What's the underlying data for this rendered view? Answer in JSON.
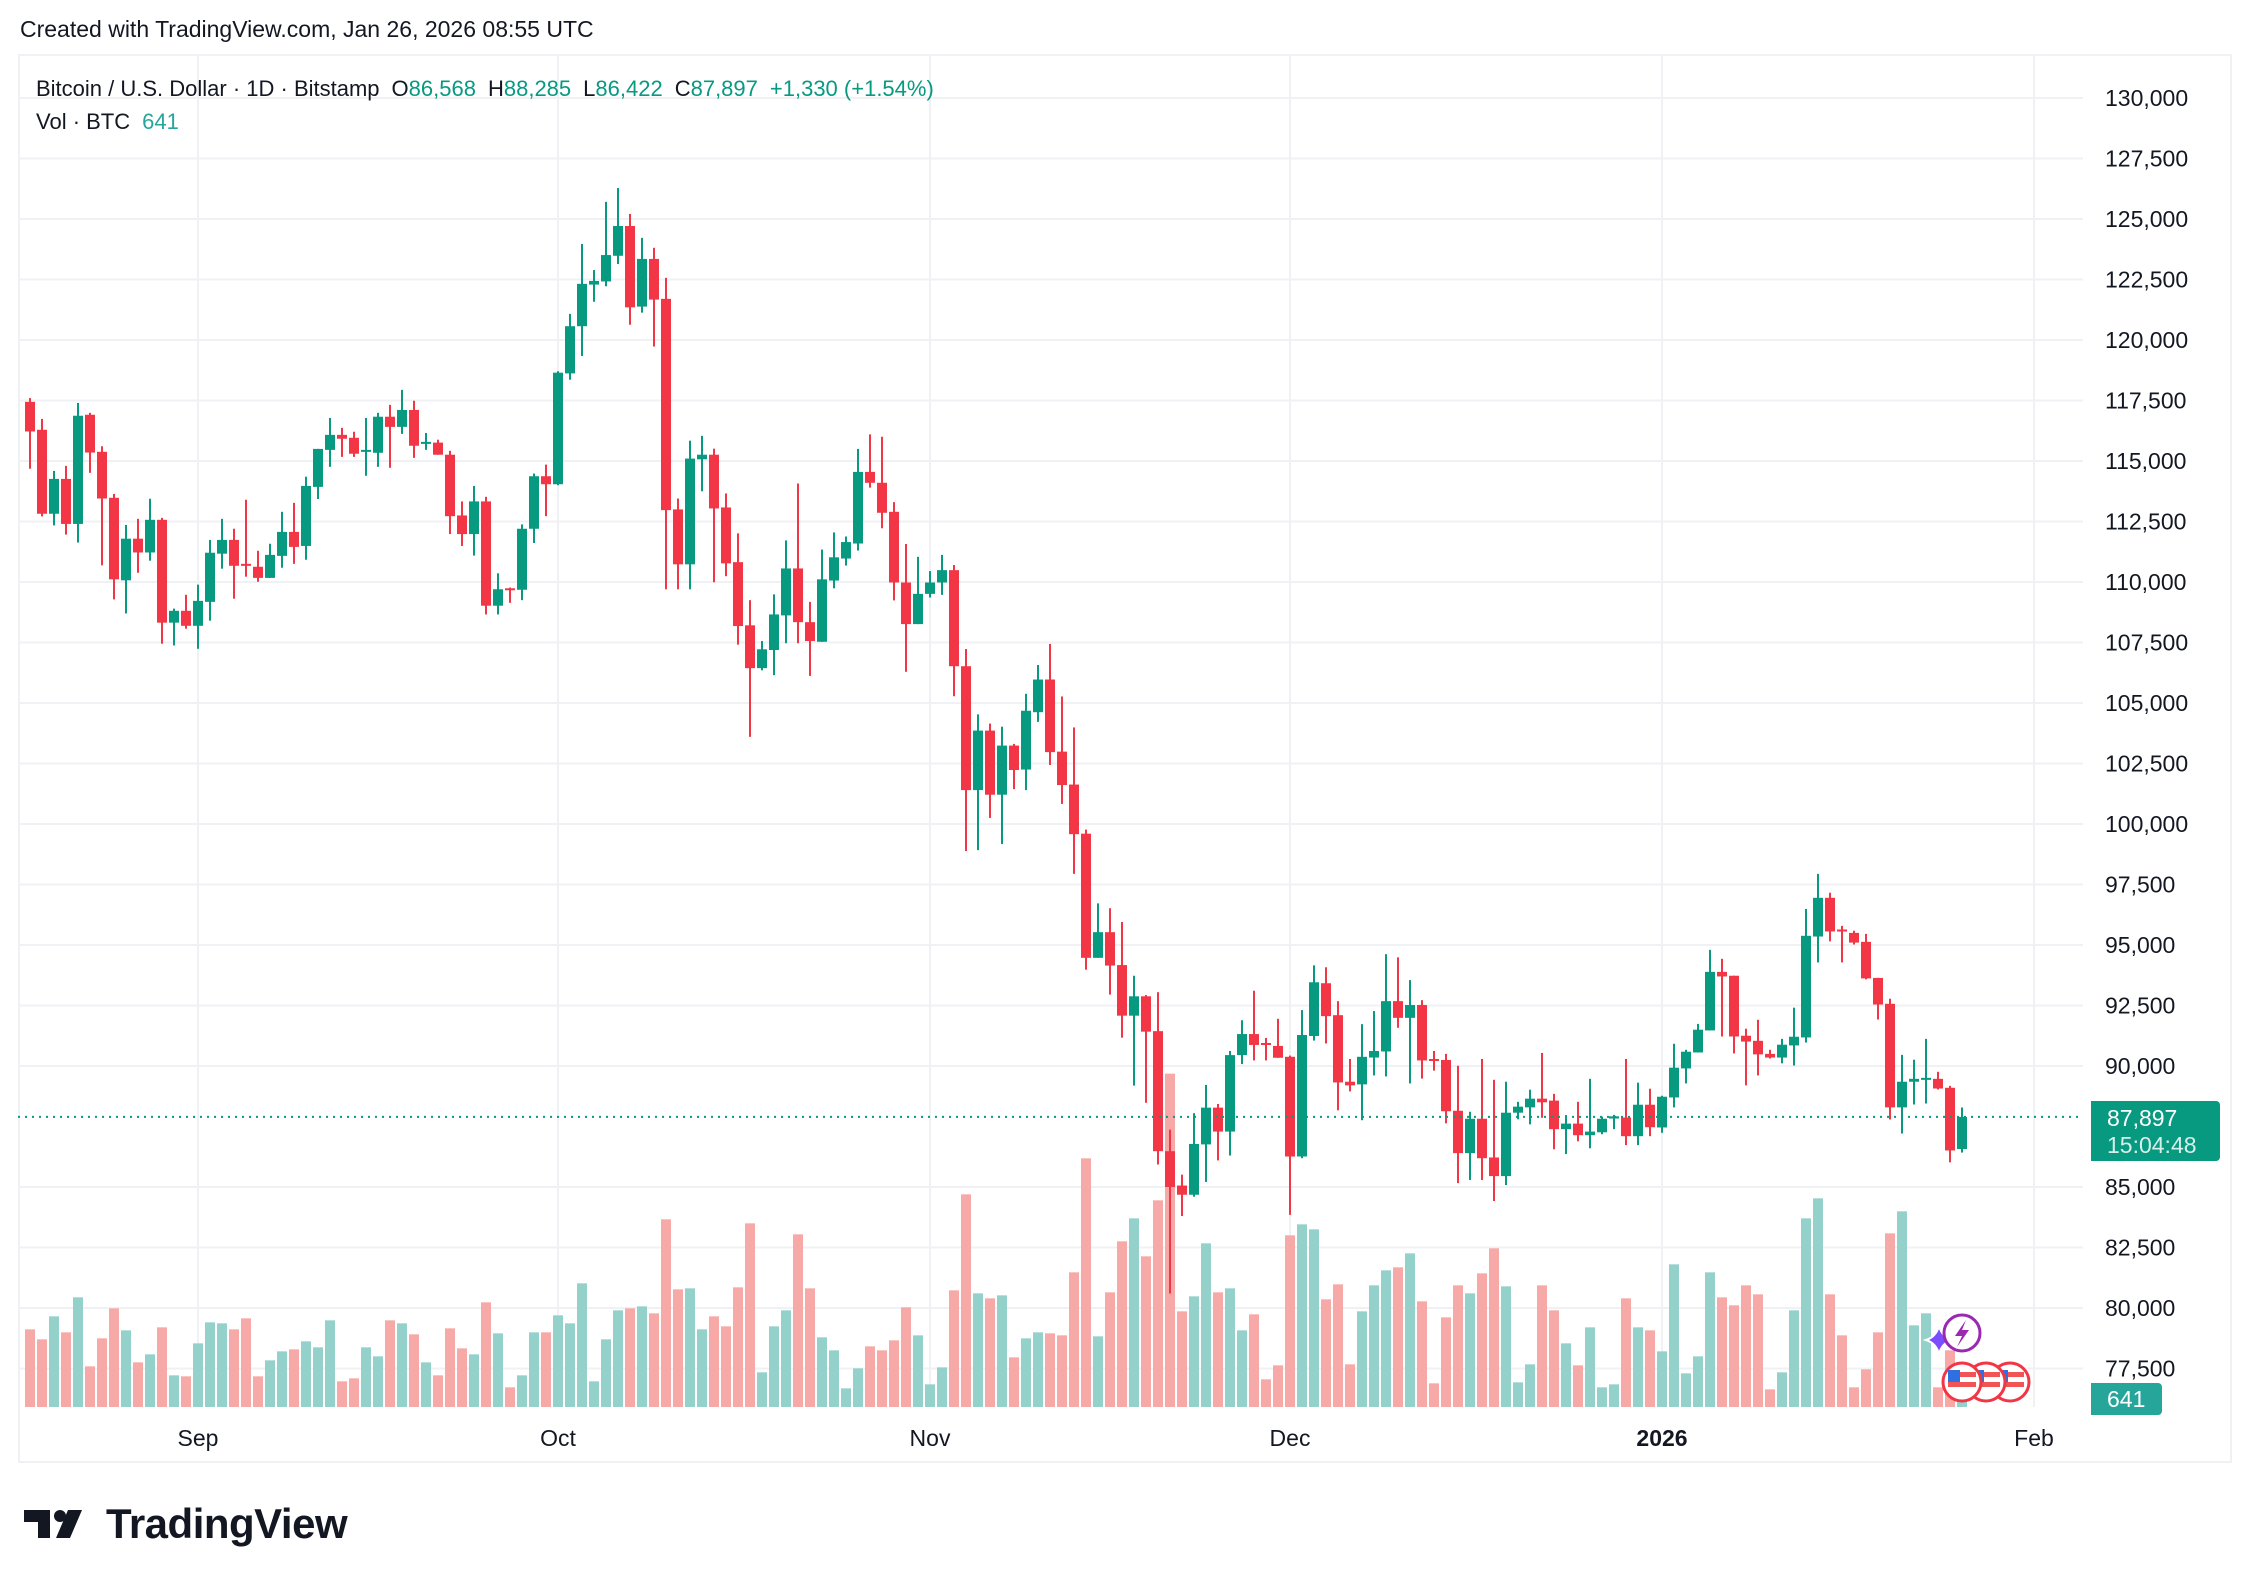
{
  "header": {
    "created": "Created with TradingView.com, Jan 26, 2026 08:55 UTC"
  },
  "legend": {
    "symbol": "Bitcoin / U.S. Dollar · 1D · Bitstamp",
    "o_label": "O",
    "o_value": "86,568",
    "h_label": "H",
    "h_value": "88,285",
    "l_label": "L",
    "l_value": "86,422",
    "c_label": "C",
    "c_value": "87,897",
    "change": "+1,330 (+1.54%)",
    "vol_label": "Vol · BTC",
    "vol_value": "641"
  },
  "badges": {
    "price": "87,897",
    "countdown": "15:04:48",
    "volume": "641"
  },
  "brand": {
    "name": "TradingView"
  },
  "colors": {
    "up": "#089981",
    "down": "#f23645",
    "vol_up": "#94d1cb",
    "vol_down": "#f7a9a7",
    "grid": "#f0f1f4"
  },
  "chart_data": {
    "type": "candlestick",
    "title": "Bitcoin / U.S. Dollar · 1D · Bitstamp",
    "start_date": "2025-08-18",
    "interval": "1D",
    "ylim": [
      76500,
      131000
    ],
    "grid": true,
    "y_ticks": [
      "130,000",
      "127,500",
      "125,000",
      "122,500",
      "120,000",
      "117,500",
      "115,000",
      "112,500",
      "110,000",
      "107,500",
      "105,000",
      "102,500",
      "100,000",
      "97,500",
      "95,000",
      "92,500",
      "90,000",
      "85,000",
      "82,500",
      "80,000",
      "77,500"
    ],
    "y_tick_values": [
      130000,
      127500,
      125000,
      122500,
      120000,
      117500,
      115000,
      112500,
      110000,
      107500,
      105000,
      102500,
      100000,
      97500,
      95000,
      92500,
      90000,
      85000,
      82500,
      80000,
      77500
    ],
    "x_ticks": [
      {
        "label": "Sep",
        "date": "2025-09-01",
        "bold": false
      },
      {
        "label": "Oct",
        "date": "2025-10-01",
        "bold": false
      },
      {
        "label": "Nov",
        "date": "2025-11-01",
        "bold": false
      },
      {
        "label": "Dec",
        "date": "2025-12-01",
        "bold": false
      },
      {
        "label": "2026",
        "date": "2026-01-01",
        "bold": true
      },
      {
        "label": "Feb",
        "date": "2026-02-01",
        "bold": false
      }
    ],
    "last_price": 87897,
    "ohlc": [
      [
        117445,
        117600,
        114680,
        116220
      ],
      [
        116290,
        116740,
        112710,
        112820
      ],
      [
        112820,
        114590,
        112340,
        114260
      ],
      [
        114260,
        114800,
        111960,
        112400
      ],
      [
        112400,
        117400,
        111630,
        116870
      ],
      [
        116910,
        116990,
        114510,
        115350
      ],
      [
        115380,
        115610,
        110690,
        113450
      ],
      [
        113480,
        113640,
        109280,
        110110
      ],
      [
        110070,
        112360,
        108700,
        111790
      ],
      [
        111790,
        112610,
        110380,
        111220
      ],
      [
        111220,
        113440,
        110880,
        112570
      ],
      [
        112570,
        112650,
        107450,
        108320
      ],
      [
        108320,
        108900,
        107380,
        108810
      ],
      [
        108810,
        109470,
        108070,
        108190
      ],
      [
        108190,
        109890,
        107240,
        109220
      ],
      [
        109180,
        111740,
        108400,
        111210
      ],
      [
        111170,
        112610,
        110550,
        111740
      ],
      [
        111740,
        112200,
        109310,
        110670
      ],
      [
        110750,
        113400,
        110220,
        110670
      ],
      [
        110630,
        111290,
        110010,
        110170
      ],
      [
        110170,
        111580,
        110170,
        111120
      ],
      [
        111080,
        112900,
        110590,
        112070
      ],
      [
        112070,
        113270,
        110750,
        111450
      ],
      [
        111490,
        114350,
        110920,
        113970
      ],
      [
        113930,
        115500,
        113430,
        115500
      ],
      [
        115460,
        116780,
        114760,
        116080
      ],
      [
        116080,
        116370,
        115170,
        115920
      ],
      [
        115960,
        116210,
        115170,
        115300
      ],
      [
        115420,
        116780,
        114390,
        115460
      ],
      [
        115340,
        116990,
        114760,
        116830
      ],
      [
        116830,
        117320,
        114720,
        116410
      ],
      [
        116410,
        117940,
        116120,
        117110
      ],
      [
        117110,
        117490,
        115130,
        115630
      ],
      [
        115750,
        116160,
        115460,
        115790
      ],
      [
        115760,
        115880,
        115260,
        115260
      ],
      [
        115260,
        115420,
        111980,
        112720
      ],
      [
        112750,
        113330,
        111490,
        111980
      ],
      [
        111980,
        113970,
        111090,
        113330
      ],
      [
        113330,
        113520,
        108660,
        109020
      ],
      [
        109020,
        110360,
        108660,
        109700
      ],
      [
        109740,
        109770,
        109140,
        109680
      ],
      [
        109680,
        112380,
        109250,
        112200
      ],
      [
        112200,
        114480,
        111610,
        114370
      ],
      [
        114370,
        114850,
        112720,
        114040
      ],
      [
        114040,
        118710,
        114000,
        118650
      ],
      [
        118620,
        121080,
        118360,
        120570
      ],
      [
        120570,
        123970,
        119340,
        122320
      ],
      [
        122290,
        122890,
        121580,
        122440
      ],
      [
        122420,
        125710,
        122220,
        123510
      ],
      [
        123480,
        126280,
        123140,
        124710
      ],
      [
        124710,
        125210,
        120630,
        121350
      ],
      [
        121380,
        124220,
        121130,
        123350
      ],
      [
        123350,
        123810,
        119730,
        121670
      ],
      [
        121700,
        122570,
        109700,
        112970
      ],
      [
        113000,
        113450,
        109700,
        110730
      ],
      [
        110730,
        115840,
        109700,
        115100
      ],
      [
        115070,
        116040,
        113750,
        115260
      ],
      [
        115260,
        115510,
        109990,
        113040
      ],
      [
        113080,
        113660,
        110240,
        110770
      ],
      [
        110820,
        112010,
        107410,
        108180
      ],
      [
        108210,
        109250,
        103600,
        106440
      ],
      [
        106440,
        107560,
        106350,
        107220
      ],
      [
        107190,
        109490,
        106150,
        108660
      ],
      [
        108620,
        111720,
        107470,
        110560
      ],
      [
        110560,
        114070,
        107470,
        108340
      ],
      [
        108340,
        109180,
        106120,
        107560
      ],
      [
        107530,
        111340,
        107530,
        110110
      ],
      [
        110060,
        112050,
        109740,
        111020
      ],
      [
        110970,
        111880,
        110680,
        111650
      ],
      [
        111590,
        115500,
        111300,
        114550
      ],
      [
        114550,
        116100,
        113900,
        114100
      ],
      [
        114100,
        116000,
        112220,
        112860
      ],
      [
        112900,
        113300,
        109240,
        109980
      ],
      [
        109980,
        111570,
        106290,
        108260
      ],
      [
        108260,
        111040,
        108260,
        109510
      ],
      [
        109510,
        110450,
        109360,
        109980
      ],
      [
        109980,
        111120,
        109470,
        110490
      ],
      [
        110490,
        110700,
        105280,
        106520
      ],
      [
        106520,
        107230,
        98880,
        101400
      ],
      [
        101400,
        104530,
        98920,
        103860
      ],
      [
        103860,
        104150,
        100250,
        101210
      ],
      [
        101210,
        104020,
        99170,
        103240
      ],
      [
        103240,
        103310,
        101440,
        102230
      ],
      [
        102250,
        105380,
        101400,
        104680
      ],
      [
        104620,
        106570,
        104220,
        105970
      ],
      [
        105970,
        107440,
        102440,
        102970
      ],
      [
        102990,
        105270,
        100830,
        101610
      ],
      [
        101630,
        103990,
        97940,
        99580
      ],
      [
        99600,
        99770,
        93980,
        94470
      ],
      [
        94470,
        96720,
        94470,
        95530
      ],
      [
        95530,
        96520,
        92950,
        94150
      ],
      [
        94170,
        95950,
        91170,
        92080
      ],
      [
        92080,
        93730,
        89190,
        92880
      ],
      [
        92880,
        92930,
        88480,
        91420
      ],
      [
        91440,
        93050,
        85930,
        86480
      ],
      [
        86480,
        87370,
        80600,
        85000
      ],
      [
        85060,
        85510,
        83800,
        84680
      ],
      [
        84680,
        88050,
        84600,
        86780
      ],
      [
        86760,
        89220,
        85210,
        88280
      ],
      [
        88280,
        88430,
        86100,
        87290
      ],
      [
        87290,
        90620,
        86300,
        90450
      ],
      [
        90450,
        91890,
        90080,
        91320
      ],
      [
        91320,
        93110,
        90230,
        90870
      ],
      [
        90950,
        91160,
        90230,
        90880
      ],
      [
        90830,
        91950,
        90340,
        90340
      ],
      [
        90380,
        90430,
        83850,
        86260
      ],
      [
        86260,
        92310,
        86190,
        91280
      ],
      [
        91240,
        94160,
        91050,
        93460
      ],
      [
        93420,
        94080,
        90930,
        92060
      ],
      [
        92100,
        92680,
        88170,
        89320
      ],
      [
        89350,
        90290,
        88950,
        89200
      ],
      [
        89240,
        91730,
        87760,
        90380
      ],
      [
        90350,
        92270,
        89610,
        90620
      ],
      [
        90600,
        94620,
        89570,
        92680
      ],
      [
        92680,
        94490,
        91580,
        91990
      ],
      [
        91990,
        93550,
        89280,
        92520
      ],
      [
        92520,
        92720,
        89480,
        90230
      ],
      [
        90290,
        90620,
        89810,
        90230
      ],
      [
        90250,
        90500,
        87630,
        88130
      ],
      [
        88150,
        90010,
        85160,
        86400
      ],
      [
        86400,
        88110,
        85290,
        87820
      ],
      [
        87820,
        90290,
        85290,
        86190
      ],
      [
        86220,
        89430,
        84420,
        85450
      ],
      [
        85450,
        89350,
        85080,
        88070
      ],
      [
        88070,
        88520,
        87800,
        88320
      ],
      [
        88290,
        89020,
        87590,
        88650
      ],
      [
        88650,
        90540,
        87860,
        88500
      ],
      [
        88570,
        88850,
        86560,
        87390
      ],
      [
        87390,
        87970,
        86360,
        87620
      ],
      [
        87620,
        88520,
        86890,
        87140
      ],
      [
        87140,
        89470,
        86600,
        87290
      ],
      [
        87260,
        87910,
        87180,
        87820
      ],
      [
        87830,
        87980,
        87390,
        87920
      ],
      [
        87870,
        90290,
        86730,
        87100
      ],
      [
        87100,
        89310,
        86730,
        88400
      ],
      [
        88400,
        89060,
        87100,
        87470
      ],
      [
        87460,
        88770,
        87240,
        88730
      ],
      [
        88700,
        90920,
        88290,
        89930
      ],
      [
        89900,
        90670,
        89280,
        90590
      ],
      [
        90560,
        91740,
        90560,
        91500
      ],
      [
        91470,
        94800,
        91470,
        93890
      ],
      [
        93890,
        94430,
        91220,
        93700
      ],
      [
        93730,
        93730,
        90520,
        91220
      ],
      [
        91250,
        91540,
        89200,
        91010
      ],
      [
        91040,
        91910,
        89610,
        90480
      ],
      [
        90500,
        90670,
        90310,
        90350
      ],
      [
        90350,
        91120,
        90110,
        90880
      ],
      [
        90850,
        92410,
        90020,
        91210
      ],
      [
        91180,
        96490,
        90970,
        95380
      ],
      [
        95350,
        97940,
        94280,
        96950
      ],
      [
        96950,
        97160,
        95150,
        95560
      ],
      [
        95640,
        95790,
        94280,
        95570
      ],
      [
        95500,
        95590,
        95020,
        95100
      ],
      [
        95130,
        95460,
        93580,
        93620
      ],
      [
        93640,
        93640,
        91920,
        92540
      ],
      [
        92570,
        92780,
        87790,
        88290
      ],
      [
        88290,
        90460,
        87210,
        89350
      ],
      [
        89350,
        90260,
        88410,
        89470
      ],
      [
        89440,
        91120,
        88450,
        89510
      ],
      [
        89470,
        89760,
        89030,
        89070
      ],
      [
        89100,
        89180,
        86020,
        86510
      ],
      [
        86568,
        88285,
        86422,
        87897
      ]
    ],
    "volume": [
      2330,
      2030,
      2720,
      2240,
      3290,
      1220,
      2060,
      2960,
      2300,
      1340,
      1580,
      2390,
      950,
      920,
      1910,
      2540,
      2510,
      2330,
      2660,
      920,
      1400,
      1670,
      1730,
      1970,
      1790,
      2600,
      770,
      860,
      1790,
      1520,
      2600,
      2510,
      2180,
      1340,
      950,
      2360,
      1760,
      1580,
      3140,
      2210,
      590,
      950,
      2240,
      2240,
      2750,
      2510,
      3710,
      770,
      2030,
      2900,
      2960,
      3020,
      2810,
      5630,
      3530,
      3560,
      2330,
      2720,
      2420,
      3590,
      5510,
      1040,
      2420,
      2900,
      5180,
      3560,
      2090,
      1700,
      560,
      1160,
      1820,
      1700,
      2000,
      2990,
      2150,
      680,
      1190,
      3500,
      6380,
      3410,
      3260,
      3350,
      1490,
      2060,
      2240,
      2210,
      2150,
      4040,
      7460,
      2120,
      3440,
      4970,
      5660,
      4520,
      6200,
      10000,
      2870,
      3320,
      4910,
      3440,
      3560,
      2300,
      2780,
      830,
      1250,
      5150,
      5480,
      5330,
      3230,
      3680,
      1280,
      2870,
      3650,
      4100,
      4190,
      4610,
      3170,
      710,
      2690,
      3650,
      3410,
      4010,
      4760,
      3620,
      740,
      1280,
      3650,
      2900,
      1910,
      1250,
      2390,
      590,
      680,
      3260,
      2390,
      2300,
      1670,
      4280,
      1010,
      1520,
      4040,
      3290,
      3050,
      3650,
      3380,
      530,
      1040,
      2900,
      5660,
      6260,
      3380,
      2150,
      590,
      1130,
      2240,
      5210,
      5870,
      2450,
      2810,
      590,
      1700,
      641
    ]
  }
}
